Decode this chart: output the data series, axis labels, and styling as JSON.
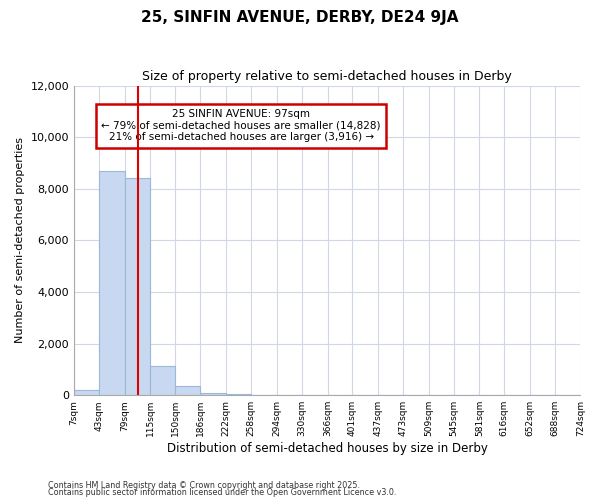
{
  "title": "25, SINFIN AVENUE, DERBY, DE24 9JA",
  "subtitle": "Size of property relative to semi-detached houses in Derby",
  "xlabel": "Distribution of semi-detached houses by size in Derby",
  "ylabel": "Number of semi-detached properties",
  "annotation_line1": "25 SINFIN AVENUE: 97sqm",
  "annotation_line2": "← 79% of semi-detached houses are smaller (14,828)",
  "annotation_line3": "21% of semi-detached houses are larger (3,916) →",
  "property_size": 97,
  "bin_edges": [
    7,
    43,
    79,
    115,
    150,
    186,
    222,
    258,
    294,
    330,
    366,
    401,
    437,
    473,
    509,
    545,
    581,
    616,
    652,
    688,
    724
  ],
  "bar_heights": [
    200,
    8700,
    8400,
    1150,
    340,
    100,
    40,
    10,
    4,
    2,
    1,
    0,
    0,
    0,
    0,
    0,
    0,
    0,
    0,
    0
  ],
  "bar_color": "#c8d8f0",
  "bar_edge_color": "#9ab8d8",
  "vline_color": "#dd0000",
  "grid_color": "#d0d8e8",
  "bg_color": "#ffffff",
  "box_edge_color": "#cc0000",
  "ylim": [
    0,
    12000
  ],
  "yticks": [
    0,
    2000,
    4000,
    6000,
    8000,
    10000,
    12000
  ],
  "footnote1": "Contains HM Land Registry data © Crown copyright and database right 2025.",
  "footnote2": "Contains public sector information licensed under the Open Government Licence v3.0."
}
